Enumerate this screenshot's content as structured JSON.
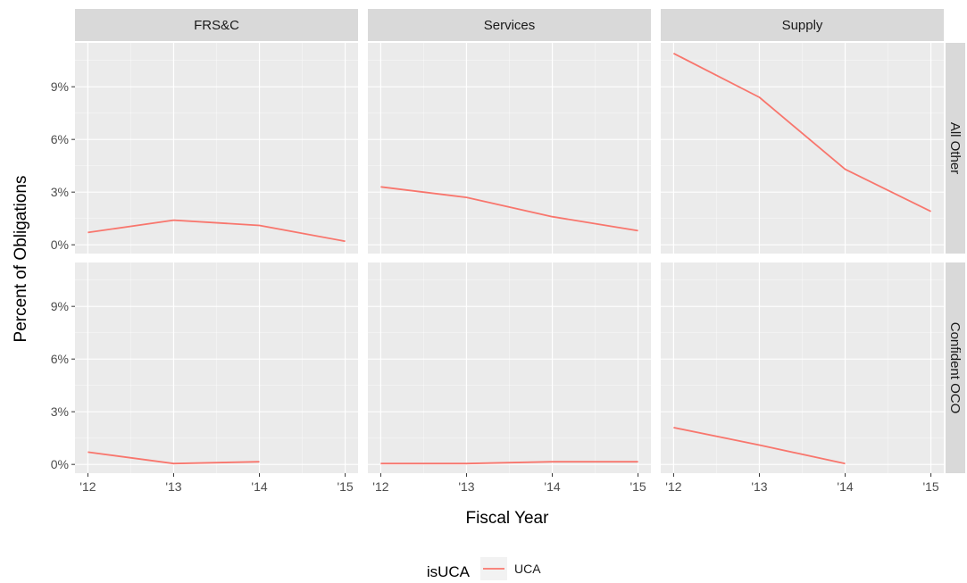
{
  "chart_data": {
    "type": "line",
    "facet_columns": [
      "FRS&C",
      "Services",
      "Supply"
    ],
    "facet_rows": [
      "All Other",
      "Confident OCO"
    ],
    "x_tick_labels": [
      "'12",
      "'13",
      "'14",
      "'15"
    ],
    "x": [
      2012,
      2013,
      2014,
      2015
    ],
    "y_tick_labels": [
      "0%",
      "3%",
      "6%",
      "9%"
    ],
    "y_ticks": [
      0,
      3,
      6,
      9
    ],
    "ylim": [
      -0.5,
      11.5
    ],
    "xlabel": "Fiscal Year",
    "ylabel": "Percent of Obligations",
    "grid": true,
    "legend": {
      "title": "isUCA",
      "position": "bottom",
      "entries": [
        {
          "label": "UCA",
          "color": "#F8766D"
        }
      ]
    },
    "panels": [
      {
        "row": "All Other",
        "col": "FRS&C",
        "series": [
          {
            "name": "UCA",
            "points": [
              [
                2012,
                0.7
              ],
              [
                2013,
                1.4
              ],
              [
                2014,
                1.1
              ],
              [
                2015,
                0.2
              ]
            ]
          }
        ]
      },
      {
        "row": "All Other",
        "col": "Services",
        "series": [
          {
            "name": "UCA",
            "points": [
              [
                2012,
                3.3
              ],
              [
                2013,
                2.7
              ],
              [
                2014,
                1.6
              ],
              [
                2015,
                0.8
              ]
            ]
          }
        ]
      },
      {
        "row": "All Other",
        "col": "Supply",
        "series": [
          {
            "name": "UCA",
            "points": [
              [
                2012,
                10.9
              ],
              [
                2013,
                8.4
              ],
              [
                2014,
                4.3
              ],
              [
                2015,
                1.9
              ]
            ]
          }
        ]
      },
      {
        "row": "Confident OCO",
        "col": "FRS&C",
        "series": [
          {
            "name": "UCA",
            "points": [
              [
                2012,
                0.7
              ],
              [
                2013,
                0.05
              ],
              [
                2014,
                0.15
              ]
            ]
          }
        ]
      },
      {
        "row": "Confident OCO",
        "col": "Services",
        "series": [
          {
            "name": "UCA",
            "points": [
              [
                2012,
                0.05
              ],
              [
                2013,
                0.05
              ],
              [
                2014,
                0.15
              ],
              [
                2015,
                0.15
              ]
            ]
          }
        ]
      },
      {
        "row": "Confident OCO",
        "col": "Supply",
        "series": [
          {
            "name": "UCA",
            "points": [
              [
                2012,
                2.1
              ],
              [
                2013,
                1.1
              ],
              [
                2014,
                0.05
              ]
            ]
          }
        ]
      }
    ]
  },
  "colors": {
    "panel_background": "#EBEBEB",
    "strip_background": "#D9D9D9",
    "grid_major": "#FFFFFF",
    "line": "#F8766D",
    "tick_text": "#4D4D4D"
  }
}
